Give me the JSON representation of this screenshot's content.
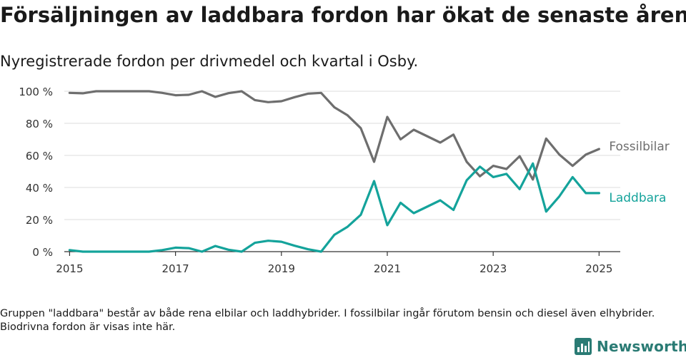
{
  "title": "Försäljningen av laddbara fordon har ökat de senaste åren",
  "subtitle": "Nyregistrerade fordon per drivmedel och kvartal i Osby.",
  "footnote": "Gruppen \"laddbara\" består av både rena elbilar och laddhybrider. I fossilbilar ingår förutom bensin och diesel även elhybrider. Biodrivna fordon är visas inte här.",
  "brand": {
    "name": "Newsworthy",
    "icon": "bar-chart-logo-icon",
    "color": "#2a7b74"
  },
  "chart_data": {
    "type": "line",
    "title": "Försäljningen av laddbara fordon har ökat de senaste åren",
    "subtitle": "Nyregistrerade fordon per drivmedel och kvartal i Osby.",
    "xlabel": "",
    "ylabel": "",
    "ylim": [
      0,
      100
    ],
    "xlim": [
      2014.9,
      2025.4
    ],
    "y_ticks": [
      0,
      20,
      40,
      60,
      80,
      100
    ],
    "y_tick_labels": [
      "0 %",
      "20 %",
      "40 %",
      "60 %",
      "80 %",
      "100 %"
    ],
    "x_ticks": [
      2015,
      2017,
      2019,
      2021,
      2023,
      2025
    ],
    "x_tick_labels": [
      "2015",
      "2017",
      "2019",
      "2021",
      "2023",
      "2025"
    ],
    "grid": "horizontal",
    "legend": "inline labels at line ends",
    "x": [
      2015.0,
      2015.25,
      2015.5,
      2015.75,
      2016.0,
      2016.25,
      2016.5,
      2016.75,
      2017.0,
      2017.25,
      2017.5,
      2017.75,
      2018.0,
      2018.25,
      2018.5,
      2018.75,
      2019.0,
      2019.25,
      2019.5,
      2019.75,
      2020.0,
      2020.25,
      2020.5,
      2020.75,
      2021.0,
      2021.25,
      2021.5,
      2021.75,
      2022.0,
      2022.25,
      2022.5,
      2022.75,
      2023.0,
      2023.25,
      2023.5,
      2023.75,
      2024.0,
      2024.25,
      2024.5,
      2024.75,
      2025.0
    ],
    "series": [
      {
        "name": "Fossilbilar",
        "color": "#6e6e6e",
        "values": [
          99,
          98.7,
          100,
          100,
          100,
          100,
          100,
          99,
          97.5,
          97.8,
          100,
          96.5,
          98.8,
          100,
          94.5,
          93.2,
          93.8,
          96.3,
          98.5,
          99,
          90,
          85,
          77,
          56,
          84,
          70,
          76,
          72,
          68,
          73,
          56,
          47,
          53.5,
          51.5,
          59.5,
          45,
          70.5,
          60.5,
          53.5,
          60.5,
          64
        ]
      },
      {
        "name": "Laddbara",
        "color": "#14a39b",
        "values": [
          1,
          0,
          0,
          0,
          0,
          0,
          0,
          1,
          2.5,
          2.2,
          0,
          3.5,
          1.2,
          0,
          5.5,
          6.8,
          6.2,
          3.7,
          1.5,
          0,
          10.5,
          15.5,
          23,
          44,
          16.5,
          30.5,
          24,
          28,
          32,
          26,
          44.5,
          53,
          46.5,
          48.5,
          39,
          55,
          25,
          34.5,
          46.5,
          36.5,
          36.5
        ]
      }
    ]
  }
}
